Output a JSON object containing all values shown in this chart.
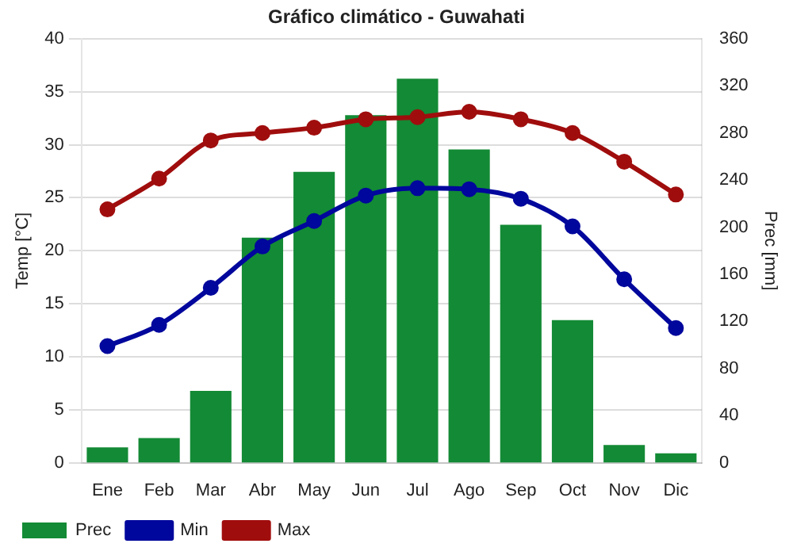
{
  "chart_data": {
    "type": "bar",
    "title": "Gráfico climático - Guwahati",
    "ylabel": "Temp [°C]",
    "y2label": "Prec [mm]",
    "categories": [
      "Ene",
      "Feb",
      "Mar",
      "Abr",
      "May",
      "Jun",
      "Jul",
      "Ago",
      "Sep",
      "Oct",
      "Nov",
      "Dic"
    ],
    "series": [
      {
        "name": "Prec",
        "axis": "y2",
        "color": "#138a35",
        "values": [
          13,
          21,
          61,
          191,
          247,
          295,
          326,
          266,
          202,
          121,
          15,
          8
        ]
      },
      {
        "name": "Min",
        "type": "line",
        "color": "#00079c",
        "values": [
          11.0,
          13.0,
          16.5,
          20.4,
          22.8,
          25.2,
          25.9,
          25.8,
          24.9,
          22.3,
          17.3,
          12.7
        ]
      },
      {
        "name": "Max",
        "type": "line",
        "color": "#a00d0d",
        "values": [
          23.9,
          26.8,
          30.4,
          31.1,
          31.6,
          32.4,
          32.6,
          33.1,
          32.4,
          31.1,
          28.4,
          25.3
        ]
      }
    ],
    "ylim": [
      0,
      40
    ],
    "yticks": [
      0,
      5,
      10,
      15,
      20,
      25,
      30,
      35,
      40
    ],
    "y2lim": [
      0,
      360
    ],
    "y2ticks": [
      0,
      40,
      80,
      120,
      160,
      200,
      240,
      280,
      320,
      360
    ],
    "grid": "y",
    "legend": "bottom left",
    "marker": "circle",
    "line_style": "solid"
  }
}
